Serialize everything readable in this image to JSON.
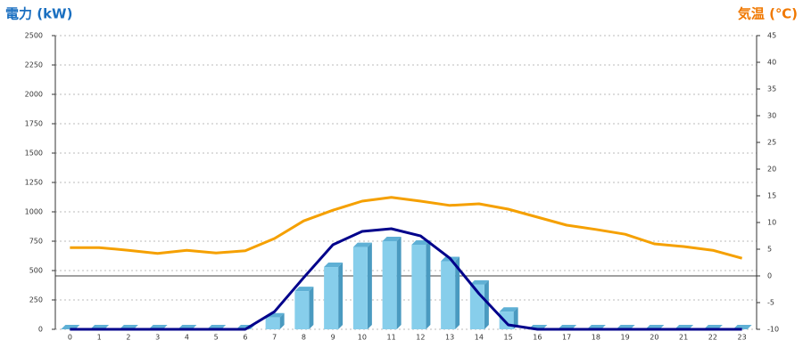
{
  "chart_data": {
    "type": "bar-line",
    "y_title": "電力 (kW)",
    "y2_title": "気温 (℃)",
    "categories": [
      "0",
      "1",
      "2",
      "3",
      "4",
      "5",
      "6",
      "7",
      "8",
      "9",
      "10",
      "11",
      "12",
      "13",
      "14",
      "15",
      "16",
      "17",
      "18",
      "19",
      "20",
      "21",
      "22",
      "23"
    ],
    "series": [
      {
        "type": "bar",
        "color": "#87ceeb",
        "values": [
          0,
          0,
          0,
          0,
          0,
          0,
          0,
          100,
          325,
          530,
          700,
          750,
          720,
          580,
          380,
          150,
          0,
          0,
          0,
          0,
          0,
          0,
          0,
          0
        ]
      },
      {
        "type": "line",
        "color": "#00008b",
        "values": [
          0,
          0,
          0,
          0,
          0,
          0,
          0,
          150,
          440,
          720,
          833,
          856,
          795,
          606,
          303,
          38,
          0,
          0,
          0,
          0,
          0,
          0,
          0,
          0
        ]
      },
      {
        "type": "line",
        "axis": "y2",
        "color": "#f5a000",
        "values": [
          5.3,
          5.3,
          4.8,
          4.2,
          4.8,
          4.3,
          4.7,
          7,
          10.3,
          12.3,
          14,
          14.7,
          14,
          13.2,
          13.5,
          12.5,
          11,
          9.5,
          8.7,
          7.8,
          6,
          5.5,
          4.8,
          3.3
        ]
      }
    ],
    "ylim": [
      0,
      2500
    ],
    "yticks": [
      0,
      250,
      500,
      750,
      1000,
      1250,
      1500,
      1750,
      2000,
      2250,
      2500
    ],
    "y2lim": [
      -10,
      45
    ],
    "y2ticks": [
      -10,
      -5,
      0,
      5,
      10,
      15,
      20,
      25,
      30,
      35,
      40,
      45
    ],
    "grid": true
  }
}
